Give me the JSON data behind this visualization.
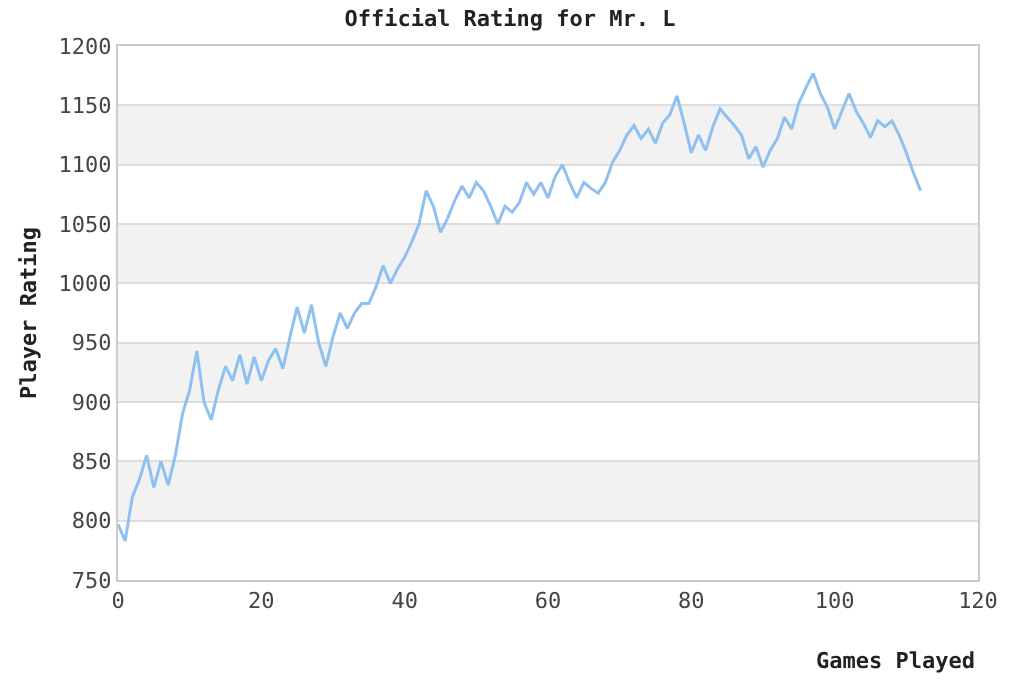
{
  "chart_data": {
    "type": "line",
    "title": "Official Rating for Mr. L",
    "xlabel": "Games Played",
    "ylabel": "Player Rating",
    "x": [
      0,
      1,
      2,
      3,
      4,
      5,
      6,
      7,
      8,
      9,
      10,
      11,
      12,
      13,
      14,
      15,
      16,
      17,
      18,
      19,
      20,
      21,
      22,
      23,
      24,
      25,
      26,
      27,
      28,
      29,
      30,
      31,
      32,
      33,
      34,
      35,
      36,
      37,
      38,
      39,
      40,
      41,
      42,
      43,
      44,
      45,
      46,
      47,
      48,
      49,
      50,
      51,
      52,
      53,
      54,
      55,
      56,
      57,
      58,
      59,
      60,
      61,
      62,
      63,
      64,
      65,
      66,
      67,
      68,
      69,
      70,
      71,
      72,
      73,
      74,
      75,
      76,
      77,
      78,
      79,
      80,
      81,
      82,
      83,
      84,
      85,
      86,
      87,
      88,
      89,
      90,
      91,
      92,
      93,
      94,
      95,
      96,
      97,
      98,
      99,
      100,
      101,
      102,
      103,
      104,
      105,
      106,
      107,
      108,
      109,
      110,
      111,
      112
    ],
    "series": [
      {
        "color": "#90c0f0",
        "values": [
          797,
          783,
          820,
          835,
          855,
          828,
          850,
          830,
          855,
          890,
          910,
          943,
          900,
          885,
          910,
          930,
          918,
          940,
          915,
          938,
          918,
          935,
          945,
          928,
          955,
          980,
          958,
          982,
          950,
          930,
          955,
          975,
          962,
          975,
          983,
          983,
          997,
          1015,
          1000,
          1012,
          1022,
          1035,
          1050,
          1078,
          1065,
          1043,
          1055,
          1070,
          1082,
          1072,
          1085,
          1078,
          1065,
          1050,
          1065,
          1060,
          1068,
          1085,
          1075,
          1085,
          1072,
          1090,
          1100,
          1085,
          1072,
          1085,
          1080,
          1076,
          1085,
          1102,
          1112,
          1125,
          1133,
          1122,
          1130,
          1118,
          1135,
          1142,
          1158,
          1135,
          1110,
          1125,
          1112,
          1132,
          1147,
          1140,
          1133,
          1125,
          1105,
          1115,
          1098,
          1112,
          1122,
          1140,
          1130,
          1152,
          1165,
          1177,
          1160,
          1148,
          1130,
          1145,
          1160,
          1145,
          1135,
          1123,
          1137,
          1132,
          1137,
          1125,
          1110,
          1093,
          1078
        ]
      }
    ],
    "xlim": [
      0,
      120
    ],
    "xticks": [
      0,
      20,
      40,
      60,
      80,
      100,
      120
    ],
    "ylim": [
      750,
      1200
    ],
    "yticks": [
      750,
      800,
      850,
      900,
      950,
      1000,
      1050,
      1100,
      1150,
      1200
    ],
    "grid": "y",
    "marker": "none",
    "line_style": "solid"
  }
}
